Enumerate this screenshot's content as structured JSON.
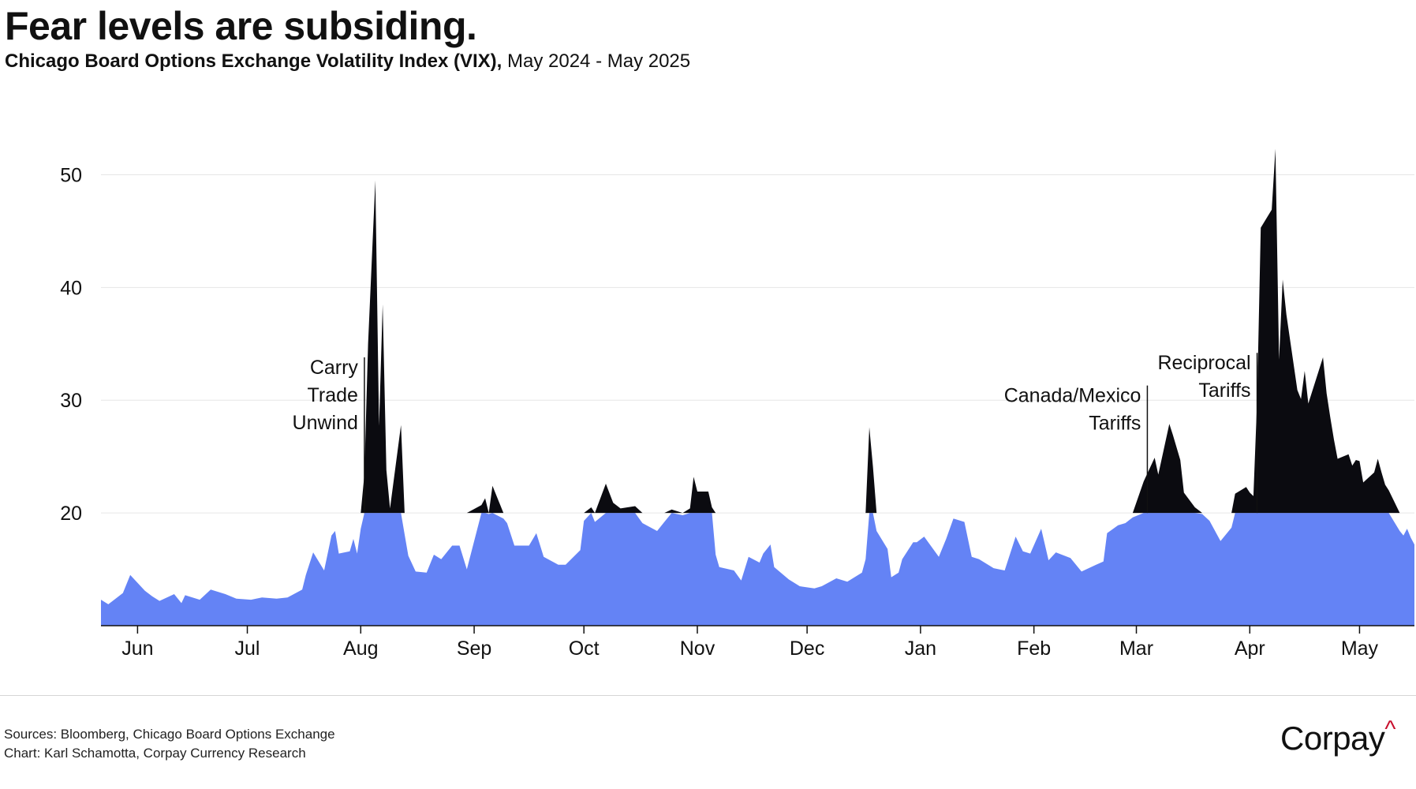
{
  "header": {
    "title": "Fear levels are subsiding.",
    "subtitle_bold": "Chicago Board Options Exchange Volatility Index (VIX),",
    "subtitle_rest": " May 2024 - May 2025"
  },
  "footer": {
    "sources": "Sources: Bloomberg, Chicago Board Options Exchange",
    "credit": "Chart: Karl Schamotta, Corpay Currency Research",
    "logo": "Corpay",
    "logo_mark": "^"
  },
  "colors": {
    "below_threshold": "#6483f5",
    "above_threshold": "#0b0b10",
    "grid": "#e6e6e6",
    "text": "#111111"
  },
  "chart_data": {
    "type": "area",
    "title": "Fear levels are subsiding.",
    "subtitle": "Chicago Board Options Exchange Volatility Index (VIX), May 2024 - May 2025",
    "xlabel": "",
    "ylabel": "",
    "ylim": [
      10,
      55
    ],
    "threshold": 20,
    "yticks": [
      20,
      30,
      40,
      50
    ],
    "grid": true,
    "legend": "none",
    "x_start": "2024-05-22",
    "x_end": "2025-05-16",
    "month_ticks": [
      {
        "label": "Jun",
        "date": "2024-06-01"
      },
      {
        "label": "Jul",
        "date": "2024-07-01"
      },
      {
        "label": "Aug",
        "date": "2024-08-01"
      },
      {
        "label": "Sep",
        "date": "2024-09-01"
      },
      {
        "label": "Oct",
        "date": "2024-10-01"
      },
      {
        "label": "Nov",
        "date": "2024-11-01"
      },
      {
        "label": "Dec",
        "date": "2024-12-01"
      },
      {
        "label": "Jan",
        "date": "2025-01-01"
      },
      {
        "label": "Feb",
        "date": "2025-02-01"
      },
      {
        "label": "Mar",
        "date": "2025-03-01"
      },
      {
        "label": "Apr",
        "date": "2025-04-01"
      },
      {
        "label": "May",
        "date": "2025-05-01"
      }
    ],
    "series": [
      {
        "name": "VIX",
        "points": [
          [
            "2024-05-22",
            12.3
          ],
          [
            "2024-05-24",
            11.9
          ],
          [
            "2024-05-28",
            12.9
          ],
          [
            "2024-05-30",
            14.5
          ],
          [
            "2024-06-03",
            13.1
          ],
          [
            "2024-06-05",
            12.6
          ],
          [
            "2024-06-07",
            12.2
          ],
          [
            "2024-06-11",
            12.8
          ],
          [
            "2024-06-13",
            12.0
          ],
          [
            "2024-06-14",
            12.7
          ],
          [
            "2024-06-18",
            12.3
          ],
          [
            "2024-06-21",
            13.2
          ],
          [
            "2024-06-25",
            12.8
          ],
          [
            "2024-06-28",
            12.4
          ],
          [
            "2024-07-02",
            12.3
          ],
          [
            "2024-07-05",
            12.5
          ],
          [
            "2024-07-09",
            12.4
          ],
          [
            "2024-07-12",
            12.5
          ],
          [
            "2024-07-16",
            13.2
          ],
          [
            "2024-07-17",
            14.5
          ],
          [
            "2024-07-19",
            16.5
          ],
          [
            "2024-07-22",
            14.9
          ],
          [
            "2024-07-24",
            18.0
          ],
          [
            "2024-07-25",
            18.4
          ],
          [
            "2024-07-26",
            16.4
          ],
          [
            "2024-07-29",
            16.6
          ],
          [
            "2024-07-30",
            17.7
          ],
          [
            "2024-07-31",
            16.4
          ],
          [
            "2024-08-01",
            18.6
          ],
          [
            "2024-08-02",
            23.4
          ],
          [
            "2024-08-03",
            35.0
          ],
          [
            "2024-08-05",
            49.5
          ],
          [
            "2024-08-06",
            27.7
          ],
          [
            "2024-08-07",
            38.5
          ],
          [
            "2024-08-08",
            23.8
          ],
          [
            "2024-08-09",
            20.4
          ],
          [
            "2024-08-12",
            27.8
          ],
          [
            "2024-08-13",
            18.1
          ],
          [
            "2024-08-14",
            16.2
          ],
          [
            "2024-08-16",
            14.8
          ],
          [
            "2024-08-19",
            14.7
          ],
          [
            "2024-08-21",
            16.3
          ],
          [
            "2024-08-23",
            15.9
          ],
          [
            "2024-08-26",
            17.1
          ],
          [
            "2024-08-28",
            17.1
          ],
          [
            "2024-08-30",
            15.0
          ],
          [
            "2024-09-03",
            20.7
          ],
          [
            "2024-09-04",
            21.3
          ],
          [
            "2024-09-05",
            19.9
          ],
          [
            "2024-09-06",
            22.4
          ],
          [
            "2024-09-09",
            19.5
          ],
          [
            "2024-09-10",
            19.1
          ],
          [
            "2024-09-12",
            17.1
          ],
          [
            "2024-09-16",
            17.1
          ],
          [
            "2024-09-18",
            18.2
          ],
          [
            "2024-09-20",
            16.1
          ],
          [
            "2024-09-24",
            15.4
          ],
          [
            "2024-09-26",
            15.4
          ],
          [
            "2024-09-30",
            16.7
          ],
          [
            "2024-10-01",
            19.3
          ],
          [
            "2024-10-03",
            20.5
          ],
          [
            "2024-10-04",
            19.2
          ],
          [
            "2024-10-07",
            22.6
          ],
          [
            "2024-10-09",
            20.9
          ],
          [
            "2024-10-11",
            20.4
          ],
          [
            "2024-10-15",
            20.6
          ],
          [
            "2024-10-17",
            19.1
          ],
          [
            "2024-10-21",
            18.4
          ],
          [
            "2024-10-23",
            19.2
          ],
          [
            "2024-10-25",
            20.3
          ],
          [
            "2024-10-28",
            19.8
          ],
          [
            "2024-10-30",
            20.4
          ],
          [
            "2024-10-31",
            23.2
          ],
          [
            "2024-11-01",
            21.9
          ],
          [
            "2024-11-04",
            21.9
          ],
          [
            "2024-11-05",
            20.5
          ],
          [
            "2024-11-06",
            16.3
          ],
          [
            "2024-11-07",
            15.2
          ],
          [
            "2024-11-11",
            14.9
          ],
          [
            "2024-11-13",
            14.0
          ],
          [
            "2024-11-15",
            16.1
          ],
          [
            "2024-11-18",
            15.6
          ],
          [
            "2024-11-19",
            16.4
          ],
          [
            "2024-11-21",
            17.2
          ],
          [
            "2024-11-22",
            15.2
          ],
          [
            "2024-11-26",
            14.1
          ],
          [
            "2024-11-29",
            13.5
          ],
          [
            "2024-12-03",
            13.3
          ],
          [
            "2024-12-05",
            13.5
          ],
          [
            "2024-12-09",
            14.2
          ],
          [
            "2024-12-12",
            13.9
          ],
          [
            "2024-12-16",
            14.7
          ],
          [
            "2024-12-17",
            15.9
          ],
          [
            "2024-12-18",
            27.6
          ],
          [
            "2024-12-19",
            24.1
          ],
          [
            "2024-12-20",
            18.4
          ],
          [
            "2024-12-23",
            16.8
          ],
          [
            "2024-12-24",
            14.3
          ],
          [
            "2024-12-26",
            14.7
          ],
          [
            "2024-12-27",
            15.9
          ],
          [
            "2024-12-30",
            17.4
          ],
          [
            "2024-12-31",
            17.4
          ],
          [
            "2025-01-02",
            17.9
          ],
          [
            "2025-01-06",
            16.1
          ],
          [
            "2025-01-08",
            17.7
          ],
          [
            "2025-01-10",
            19.5
          ],
          [
            "2025-01-13",
            19.2
          ],
          [
            "2025-01-15",
            16.1
          ],
          [
            "2025-01-17",
            15.9
          ],
          [
            "2025-01-21",
            15.1
          ],
          [
            "2025-01-24",
            14.9
          ],
          [
            "2025-01-27",
            17.9
          ],
          [
            "2025-01-29",
            16.6
          ],
          [
            "2025-01-31",
            16.4
          ],
          [
            "2025-02-03",
            18.6
          ],
          [
            "2025-02-05",
            15.8
          ],
          [
            "2025-02-07",
            16.5
          ],
          [
            "2025-02-11",
            16.0
          ],
          [
            "2025-02-14",
            14.8
          ],
          [
            "2025-02-18",
            15.4
          ],
          [
            "2025-02-20",
            15.7
          ],
          [
            "2025-02-21",
            18.2
          ],
          [
            "2025-02-24",
            18.9
          ],
          [
            "2025-02-26",
            19.1
          ],
          [
            "2025-02-28",
            19.6
          ],
          [
            "2025-03-03",
            22.8
          ],
          [
            "2025-03-04",
            23.5
          ],
          [
            "2025-03-06",
            24.9
          ],
          [
            "2025-03-07",
            23.4
          ],
          [
            "2025-03-10",
            27.9
          ],
          [
            "2025-03-11",
            26.9
          ],
          [
            "2025-03-13",
            24.7
          ],
          [
            "2025-03-14",
            21.8
          ],
          [
            "2025-03-17",
            20.5
          ],
          [
            "2025-03-19",
            19.9
          ],
          [
            "2025-03-21",
            19.3
          ],
          [
            "2025-03-24",
            17.5
          ],
          [
            "2025-03-26",
            18.3
          ],
          [
            "2025-03-27",
            18.7
          ],
          [
            "2025-03-28",
            21.7
          ],
          [
            "2025-03-31",
            22.3
          ],
          [
            "2025-04-01",
            21.8
          ],
          [
            "2025-04-02",
            21.5
          ],
          [
            "2025-04-03",
            30.0
          ],
          [
            "2025-04-04",
            45.3
          ],
          [
            "2025-04-07",
            46.9
          ],
          [
            "2025-04-08",
            52.3
          ],
          [
            "2025-04-09",
            33.6
          ],
          [
            "2025-04-10",
            40.7
          ],
          [
            "2025-04-11",
            37.6
          ],
          [
            "2025-04-14",
            30.9
          ],
          [
            "2025-04-15",
            30.1
          ],
          [
            "2025-04-16",
            32.6
          ],
          [
            "2025-04-17",
            29.7
          ],
          [
            "2025-04-21",
            33.8
          ],
          [
            "2025-04-22",
            30.6
          ],
          [
            "2025-04-23",
            28.5
          ],
          [
            "2025-04-24",
            26.5
          ],
          [
            "2025-04-25",
            24.8
          ],
          [
            "2025-04-28",
            25.2
          ],
          [
            "2025-04-29",
            24.2
          ],
          [
            "2025-04-30",
            24.7
          ],
          [
            "2025-05-01",
            24.6
          ],
          [
            "2025-05-02",
            22.7
          ],
          [
            "2025-05-05",
            23.6
          ],
          [
            "2025-05-06",
            24.8
          ],
          [
            "2025-05-07",
            23.6
          ],
          [
            "2025-05-08",
            22.5
          ],
          [
            "2025-05-09",
            22.0
          ],
          [
            "2025-05-12",
            18.4
          ],
          [
            "2025-05-13",
            18.0
          ],
          [
            "2025-05-14",
            18.6
          ],
          [
            "2025-05-15",
            17.8
          ],
          [
            "2025-05-16",
            17.2
          ]
        ]
      }
    ],
    "annotations": [
      {
        "lines": [
          "Carry",
          "Trade",
          "Unwind"
        ],
        "date": "2024-08-02",
        "value": 33.8,
        "align": "end"
      },
      {
        "lines": [
          "Canada/Mexico",
          "Tariffs"
        ],
        "date": "2025-03-04",
        "value": 31.3,
        "align": "end"
      },
      {
        "lines": [
          "Reciprocal",
          "Tariffs"
        ],
        "date": "2025-04-03",
        "value": 34.2,
        "align": "end"
      }
    ]
  }
}
